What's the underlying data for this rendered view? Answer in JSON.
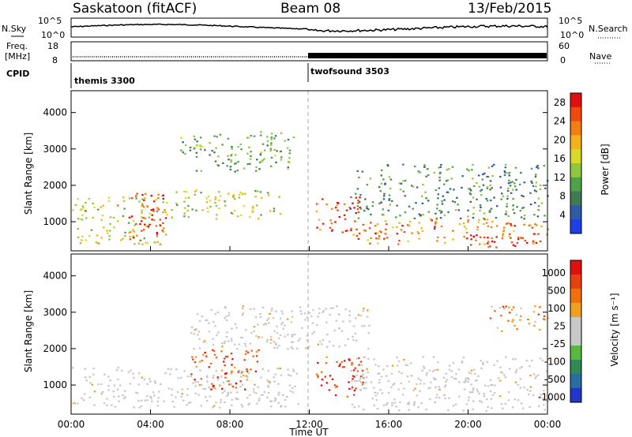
{
  "header": {
    "station": "Saskatoon (fitACF)",
    "beam": "Beam 08",
    "date": "13/Feb/2015"
  },
  "top_panels": {
    "nsky_label": "N.Sky",
    "nsky_left_ticks": [
      "10^5",
      "10^0"
    ],
    "nsky_right_ticks": [
      "10^5",
      "10^0"
    ],
    "nsearch_label": "N.Search",
    "freq_label": "Freq.",
    "freq_unit": "[MHz]",
    "freq_left_ticks": [
      "18",
      "8"
    ],
    "nave_right_ticks": [
      "60",
      "0"
    ],
    "nave_label": "Nave",
    "cpid_label": "CPID",
    "cpid_entries": [
      {
        "name": "themis 3300",
        "start": "00:00"
      },
      {
        "name": "twofsound 3503",
        "start": "12:00"
      }
    ]
  },
  "chart_data": [
    {
      "type": "heatmap",
      "name": "power",
      "ylabel": "Slant Range [km]",
      "xlabel": "",
      "yticks": [
        "1000",
        "2000",
        "3000",
        "4000"
      ],
      "ylim": [
        200,
        4600
      ],
      "xlim": [
        "00:00",
        "24:00"
      ],
      "colorbar_title": "Power [dB]",
      "colorbar_ticks": [
        "4",
        "8",
        "12",
        "16",
        "20",
        "24",
        "28"
      ],
      "colorbar_colors": [
        "#1f3fe6",
        "#2e5aa8",
        "#3f7a54",
        "#4fa24a",
        "#8ec63e",
        "#d9d92a",
        "#f3b11c",
        "#f27e14",
        "#ee4a10",
        "#e01010"
      ],
      "scatter_regions": [
        {
          "t0": 0.0,
          "t1": 4.8,
          "r0": 400,
          "r1": 1700,
          "level": 0.55
        },
        {
          "t0": 2.8,
          "t1": 4.8,
          "r0": 500,
          "r1": 1800,
          "level": 0.9
        },
        {
          "t0": 5.0,
          "t1": 10.5,
          "r0": 1100,
          "r1": 1900,
          "level": 0.5
        },
        {
          "t0": 5.5,
          "t1": 11.5,
          "r0": 2400,
          "r1": 3500,
          "level": 0.35
        },
        {
          "t0": 12.3,
          "t1": 14.6,
          "r0": 700,
          "r1": 1700,
          "level": 0.85
        },
        {
          "t0": 14.0,
          "t1": 24.0,
          "r0": 400,
          "r1": 1100,
          "level": 0.75
        },
        {
          "t0": 19.5,
          "t1": 23.5,
          "r0": 300,
          "r1": 700,
          "level": 0.95
        },
        {
          "t0": 14.0,
          "t1": 24.0,
          "r0": 1100,
          "r1": 2600,
          "level": 0.3
        }
      ]
    },
    {
      "type": "heatmap",
      "name": "velocity",
      "ylabel": "Slant Range [km]",
      "xlabel": "Time UT",
      "yticks": [
        "1000",
        "2000",
        "3000",
        "4000"
      ],
      "ylim": [
        200,
        4600
      ],
      "xticks": [
        "00:00",
        "04:00",
        "08:00",
        "12:00",
        "16:00",
        "20:00",
        "00:00"
      ],
      "xlim": [
        "00:00",
        "24:00"
      ],
      "colorbar_title": "Velocity [m s⁻¹]",
      "colorbar_ticks": [
        "1000",
        "500",
        "100",
        "25",
        "-25",
        "-100",
        "-500",
        "-1000"
      ],
      "colorbar_colors": [
        "#2137c8",
        "#2a6ea0",
        "#2f8a55",
        "#58b840",
        "#c8c8c8",
        "#c8c8c8",
        "#f0a020",
        "#f07010",
        "#e84010",
        "#e01010"
      ],
      "scatter_regions": [
        {
          "t0": 0.0,
          "t1": 11.5,
          "r0": 400,
          "r1": 1500,
          "level": 0.45
        },
        {
          "t0": 6.0,
          "t1": 9.5,
          "r0": 900,
          "r1": 2000,
          "level": 0.8
        },
        {
          "t0": 12.3,
          "t1": 14.8,
          "r0": 700,
          "r1": 1800,
          "level": 0.85
        },
        {
          "t0": 14.0,
          "t1": 24.0,
          "r0": 300,
          "r1": 1800,
          "level": 0.45
        },
        {
          "t0": 6.0,
          "t1": 15.0,
          "r0": 2000,
          "r1": 3200,
          "level": 0.45
        },
        {
          "t0": 21.0,
          "t1": 24.0,
          "r0": 2500,
          "r1": 3200,
          "level": 0.7
        }
      ]
    }
  ]
}
